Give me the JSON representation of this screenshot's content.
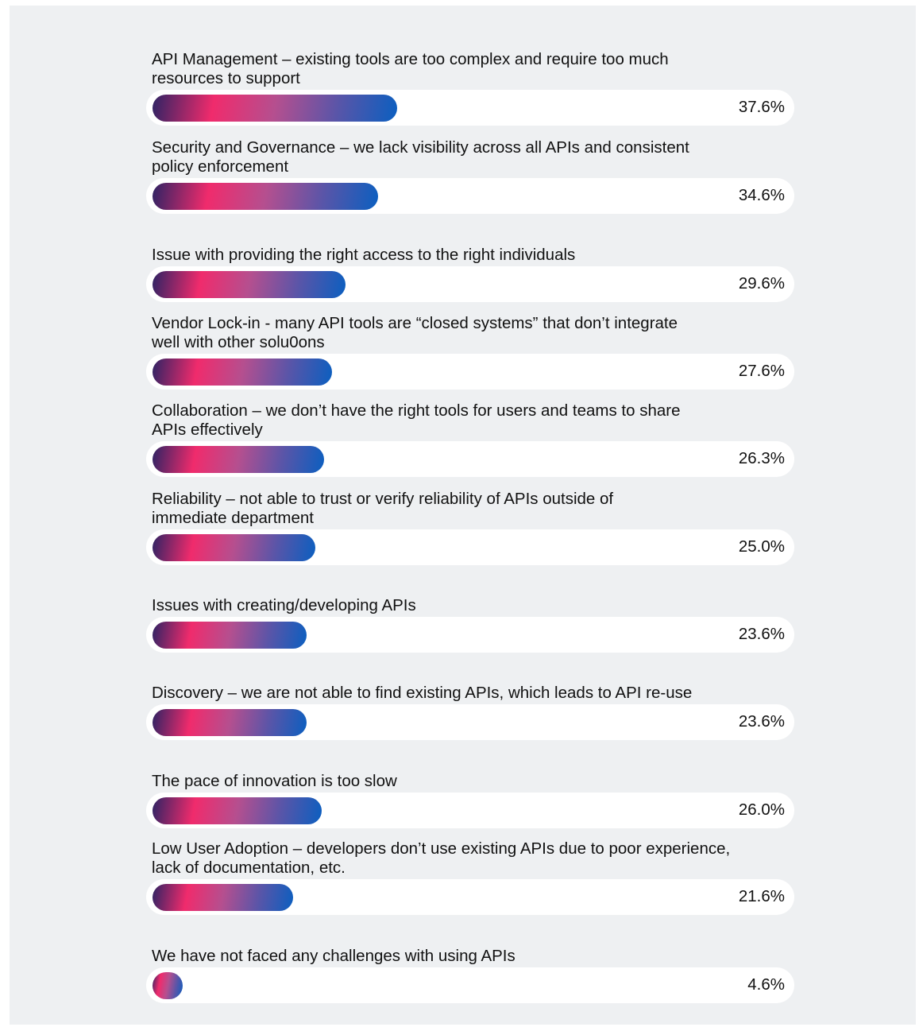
{
  "chart_data": {
    "type": "bar",
    "orientation": "horizontal",
    "categories": [
      "API Management – existing tools are too complex and require too much\nresources to support",
      "Security and Governance – we lack visibility across all APIs and consistent\npolicy enforcement",
      "Issue with providing the right access to the right individuals",
      "Vendor Lock-in - many API tools are “closed systems” that don’t integrate\nwell with other solu0ons",
      "Collaboration – we don’t have the right tools for users and teams to share\nAPIs effectively",
      "Reliability – not able to trust or verify reliability of APIs outside of\nimmediate department",
      "Issues with creating/developing APIs",
      "Discovery – we are not able to find existing APIs, which leads to API re-use",
      "The pace of innovation is too slow",
      "Low User Adoption – developers don’t use existing APIs due to poor experience,\nlack of documentation, etc.",
      "We have not faced any challenges with using APIs"
    ],
    "values": [
      37.6,
      34.6,
      29.6,
      27.6,
      26.3,
      25.0,
      23.6,
      23.6,
      26.0,
      21.6,
      4.6
    ],
    "value_labels": [
      "37.6%",
      "34.6%",
      "29.6%",
      "27.6%",
      "26.3%",
      "25.0%",
      "23.6%",
      "23.6%",
      "26.0%",
      "21.6%",
      "4.6%"
    ],
    "unit": "%",
    "xlim": [
      0,
      100
    ],
    "grid": false,
    "colors": {
      "gradient": [
        "#2e2364",
        "#f02b6c",
        "#b54f8f",
        "#5a55a8",
        "#0b5fc0"
      ],
      "track": "#ffffff",
      "background": "#eef0f2",
      "text": "#111111"
    }
  }
}
